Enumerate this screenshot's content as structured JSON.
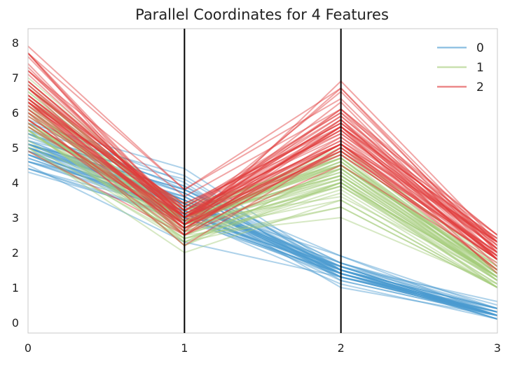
{
  "chart_data": {
    "type": "parallel_coordinates",
    "title": "Parallel Coordinates for 4 Features",
    "x": [
      0,
      1,
      2,
      3
    ],
    "x_tick_labels": [
      "0",
      "1",
      "2",
      "3"
    ],
    "ylim": [
      -0.3,
      8.4
    ],
    "y_ticks": [
      0,
      1,
      2,
      3,
      4,
      5,
      6,
      7,
      8
    ],
    "y_tick_labels": [
      "0",
      "1",
      "2",
      "3",
      "4",
      "5",
      "6",
      "7",
      "8"
    ],
    "grid": false,
    "vertical_axes_at": [
      1,
      2
    ],
    "legend": {
      "placement": "top-right",
      "entries": [
        {
          "label": "0",
          "color": "#4c9bd0"
        },
        {
          "label": "1",
          "color": "#a5cc79"
        },
        {
          "label": "2",
          "color": "#e0393a"
        }
      ]
    },
    "series": [
      {
        "name": "0",
        "color": "#4c9bd0",
        "lines": [
          [
            5.1,
            3.5,
            1.4,
            0.2
          ],
          [
            4.9,
            3.0,
            1.4,
            0.2
          ],
          [
            4.7,
            3.2,
            1.3,
            0.2
          ],
          [
            4.6,
            3.1,
            1.5,
            0.2
          ],
          [
            5.0,
            3.6,
            1.4,
            0.2
          ],
          [
            5.4,
            3.9,
            1.7,
            0.4
          ],
          [
            4.6,
            3.4,
            1.4,
            0.3
          ],
          [
            5.0,
            3.4,
            1.5,
            0.2
          ],
          [
            4.4,
            2.9,
            1.4,
            0.2
          ],
          [
            4.9,
            3.1,
            1.5,
            0.1
          ],
          [
            5.4,
            3.7,
            1.5,
            0.2
          ],
          [
            4.8,
            3.4,
            1.6,
            0.2
          ],
          [
            4.8,
            3.0,
            1.4,
            0.1
          ],
          [
            4.3,
            3.0,
            1.1,
            0.1
          ],
          [
            5.8,
            4.0,
            1.2,
            0.2
          ],
          [
            5.7,
            4.4,
            1.5,
            0.4
          ],
          [
            5.4,
            3.9,
            1.3,
            0.4
          ],
          [
            5.1,
            3.5,
            1.4,
            0.3
          ],
          [
            5.7,
            3.8,
            1.7,
            0.3
          ],
          [
            5.1,
            3.8,
            1.5,
            0.3
          ],
          [
            5.4,
            3.4,
            1.7,
            0.2
          ],
          [
            5.1,
            3.7,
            1.5,
            0.4
          ],
          [
            4.6,
            3.6,
            1.0,
            0.2
          ],
          [
            5.1,
            3.3,
            1.7,
            0.5
          ],
          [
            4.8,
            3.4,
            1.9,
            0.2
          ],
          [
            5.0,
            3.0,
            1.6,
            0.2
          ],
          [
            5.0,
            3.4,
            1.6,
            0.4
          ],
          [
            5.2,
            3.5,
            1.5,
            0.2
          ],
          [
            5.2,
            3.4,
            1.4,
            0.2
          ],
          [
            4.7,
            3.2,
            1.6,
            0.2
          ],
          [
            4.8,
            3.1,
            1.6,
            0.2
          ],
          [
            5.4,
            3.4,
            1.5,
            0.4
          ],
          [
            5.2,
            4.1,
            1.5,
            0.1
          ],
          [
            5.5,
            4.2,
            1.4,
            0.2
          ],
          [
            4.9,
            3.1,
            1.5,
            0.2
          ],
          [
            5.0,
            3.2,
            1.2,
            0.2
          ],
          [
            5.5,
            3.5,
            1.3,
            0.2
          ],
          [
            4.9,
            3.6,
            1.4,
            0.1
          ],
          [
            4.4,
            3.0,
            1.3,
            0.2
          ],
          [
            5.1,
            3.4,
            1.5,
            0.2
          ],
          [
            5.0,
            3.5,
            1.3,
            0.3
          ],
          [
            4.5,
            2.3,
            1.3,
            0.3
          ],
          [
            4.4,
            3.2,
            1.3,
            0.2
          ],
          [
            5.0,
            3.5,
            1.6,
            0.6
          ],
          [
            5.1,
            3.8,
            1.9,
            0.4
          ],
          [
            4.8,
            3.0,
            1.4,
            0.3
          ],
          [
            5.1,
            3.8,
            1.6,
            0.2
          ],
          [
            4.6,
            3.2,
            1.4,
            0.2
          ],
          [
            5.3,
            3.7,
            1.5,
            0.2
          ],
          [
            5.0,
            3.3,
            1.4,
            0.2
          ]
        ]
      },
      {
        "name": "1",
        "color": "#a5cc79",
        "lines": [
          [
            7.0,
            3.2,
            4.7,
            1.4
          ],
          [
            6.4,
            3.2,
            4.5,
            1.5
          ],
          [
            6.9,
            3.1,
            4.9,
            1.5
          ],
          [
            5.5,
            2.3,
            4.0,
            1.3
          ],
          [
            6.5,
            2.8,
            4.6,
            1.5
          ],
          [
            5.7,
            2.8,
            4.5,
            1.3
          ],
          [
            6.3,
            3.3,
            4.7,
            1.6
          ],
          [
            4.9,
            2.4,
            3.3,
            1.0
          ],
          [
            6.6,
            2.9,
            4.6,
            1.3
          ],
          [
            5.2,
            2.7,
            3.9,
            1.4
          ],
          [
            5.0,
            2.0,
            3.5,
            1.0
          ],
          [
            5.9,
            3.0,
            4.2,
            1.5
          ],
          [
            6.0,
            2.2,
            4.0,
            1.0
          ],
          [
            6.1,
            2.9,
            4.7,
            1.4
          ],
          [
            5.6,
            2.9,
            3.6,
            1.3
          ],
          [
            6.7,
            3.1,
            4.4,
            1.4
          ],
          [
            5.6,
            3.0,
            4.5,
            1.5
          ],
          [
            5.8,
            2.7,
            4.1,
            1.0
          ],
          [
            6.2,
            2.2,
            4.5,
            1.5
          ],
          [
            5.6,
            2.5,
            3.9,
            1.1
          ],
          [
            5.9,
            3.2,
            4.8,
            1.8
          ],
          [
            6.1,
            2.8,
            4.0,
            1.3
          ],
          [
            6.3,
            2.5,
            4.9,
            1.5
          ],
          [
            6.1,
            2.8,
            4.7,
            1.2
          ],
          [
            6.4,
            2.9,
            4.3,
            1.3
          ],
          [
            6.6,
            3.0,
            4.4,
            1.4
          ],
          [
            6.8,
            2.8,
            4.8,
            1.4
          ],
          [
            6.7,
            3.0,
            5.0,
            1.7
          ],
          [
            6.0,
            2.9,
            4.5,
            1.5
          ],
          [
            5.7,
            2.6,
            3.5,
            1.0
          ],
          [
            5.5,
            2.4,
            3.8,
            1.1
          ],
          [
            5.5,
            2.4,
            3.7,
            1.0
          ],
          [
            5.8,
            2.7,
            3.9,
            1.2
          ],
          [
            6.0,
            2.7,
            5.1,
            1.6
          ],
          [
            5.4,
            3.0,
            4.5,
            1.5
          ],
          [
            6.0,
            3.4,
            4.5,
            1.6
          ],
          [
            6.7,
            3.1,
            4.7,
            1.5
          ],
          [
            6.3,
            2.3,
            4.4,
            1.3
          ],
          [
            5.6,
            3.0,
            4.1,
            1.3
          ],
          [
            5.5,
            2.5,
            4.0,
            1.3
          ],
          [
            5.5,
            2.6,
            4.4,
            1.2
          ],
          [
            6.1,
            3.0,
            4.6,
            1.4
          ],
          [
            5.8,
            2.6,
            4.0,
            1.2
          ],
          [
            5.0,
            2.3,
            3.3,
            1.0
          ],
          [
            5.6,
            2.7,
            4.2,
            1.3
          ],
          [
            5.7,
            3.0,
            4.2,
            1.2
          ],
          [
            5.7,
            2.9,
            4.2,
            1.3
          ],
          [
            6.2,
            2.9,
            4.3,
            1.3
          ],
          [
            5.1,
            2.5,
            3.0,
            1.1
          ],
          [
            5.7,
            2.8,
            4.1,
            1.3
          ]
        ]
      },
      {
        "name": "2",
        "color": "#e0393a",
        "lines": [
          [
            6.3,
            3.3,
            6.0,
            2.5
          ],
          [
            5.8,
            2.7,
            5.1,
            1.9
          ],
          [
            7.1,
            3.0,
            5.9,
            2.1
          ],
          [
            6.3,
            2.9,
            5.6,
            1.8
          ],
          [
            6.5,
            3.0,
            5.8,
            2.2
          ],
          [
            7.6,
            3.0,
            6.6,
            2.1
          ],
          [
            4.9,
            2.5,
            4.5,
            1.7
          ],
          [
            7.3,
            2.9,
            6.3,
            1.8
          ],
          [
            6.7,
            2.5,
            5.8,
            1.8
          ],
          [
            7.2,
            3.6,
            6.1,
            2.5
          ],
          [
            6.5,
            3.2,
            5.1,
            2.0
          ],
          [
            6.4,
            2.7,
            5.3,
            1.9
          ],
          [
            6.8,
            3.0,
            5.5,
            2.1
          ],
          [
            5.7,
            2.5,
            5.0,
            2.0
          ],
          [
            5.8,
            2.8,
            5.1,
            2.4
          ],
          [
            6.4,
            3.2,
            5.3,
            2.3
          ],
          [
            6.5,
            3.0,
            5.5,
            1.8
          ],
          [
            7.7,
            3.8,
            6.7,
            2.2
          ],
          [
            7.7,
            2.6,
            6.9,
            2.3
          ],
          [
            6.0,
            2.2,
            5.0,
            1.5
          ],
          [
            6.9,
            3.2,
            5.7,
            2.3
          ],
          [
            5.6,
            2.8,
            4.9,
            2.0
          ],
          [
            7.7,
            2.8,
            6.7,
            2.0
          ],
          [
            6.3,
            2.7,
            4.9,
            1.8
          ],
          [
            6.7,
            3.3,
            5.7,
            2.1
          ],
          [
            7.2,
            3.2,
            6.0,
            1.8
          ],
          [
            6.2,
            2.8,
            4.8,
            1.8
          ],
          [
            6.1,
            3.0,
            4.9,
            1.8
          ],
          [
            6.4,
            2.8,
            5.6,
            2.1
          ],
          [
            7.2,
            3.0,
            5.8,
            1.6
          ],
          [
            7.4,
            2.8,
            6.1,
            1.9
          ],
          [
            7.9,
            3.8,
            6.4,
            2.0
          ],
          [
            6.4,
            2.8,
            5.6,
            2.2
          ],
          [
            6.3,
            2.8,
            5.1,
            1.5
          ],
          [
            6.1,
            2.6,
            5.6,
            1.4
          ],
          [
            7.7,
            3.0,
            6.1,
            2.3
          ],
          [
            6.3,
            3.4,
            5.6,
            2.4
          ],
          [
            6.4,
            3.1,
            5.5,
            1.8
          ],
          [
            6.0,
            3.0,
            4.8,
            1.8
          ],
          [
            6.9,
            3.1,
            5.4,
            2.1
          ],
          [
            6.7,
            3.1,
            5.6,
            2.4
          ],
          [
            6.9,
            3.1,
            5.1,
            2.3
          ],
          [
            5.8,
            2.7,
            5.1,
            1.9
          ],
          [
            6.8,
            3.2,
            5.9,
            2.3
          ],
          [
            6.7,
            3.3,
            5.7,
            2.5
          ],
          [
            6.7,
            3.0,
            5.2,
            2.3
          ],
          [
            6.3,
            2.5,
            5.0,
            1.9
          ],
          [
            6.5,
            3.0,
            5.2,
            2.0
          ],
          [
            6.2,
            3.4,
            5.4,
            2.3
          ],
          [
            5.9,
            3.0,
            5.1,
            1.8
          ]
        ]
      }
    ]
  }
}
